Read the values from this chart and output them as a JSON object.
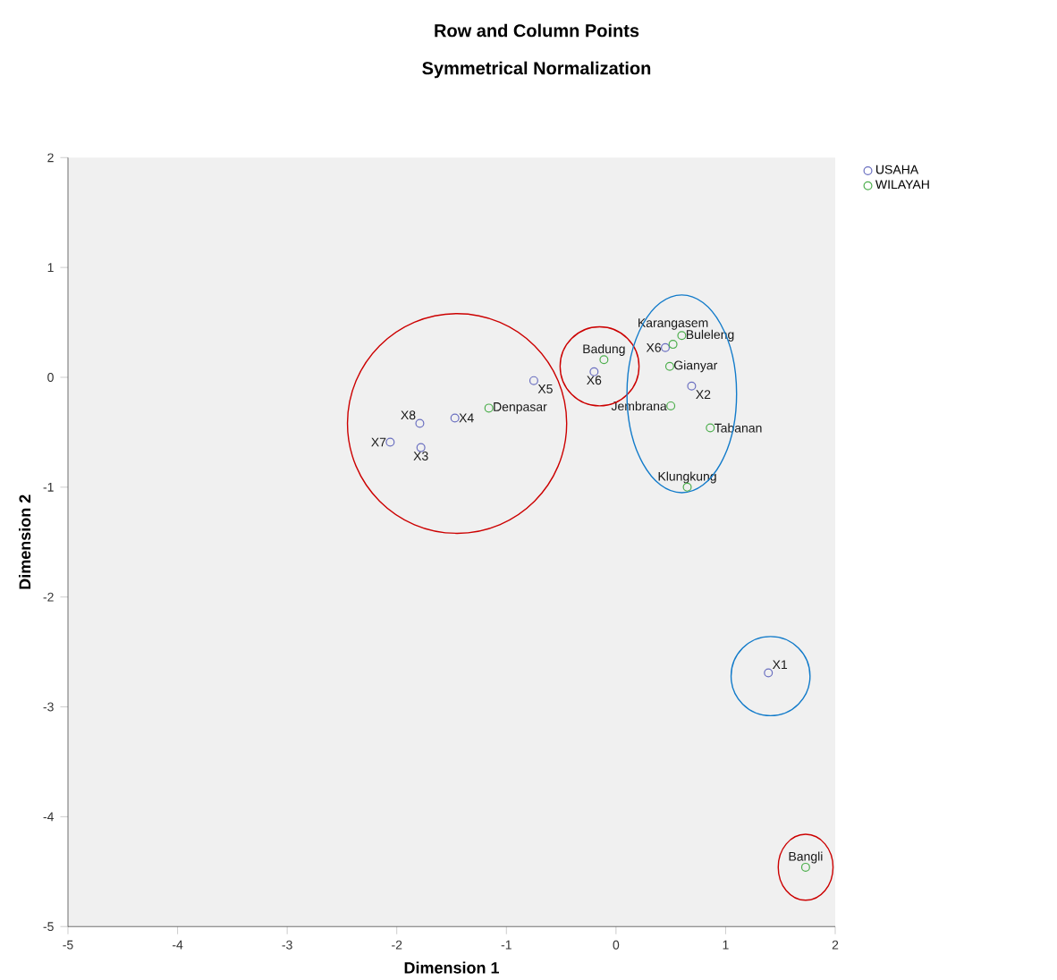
{
  "chart_data": {
    "type": "scatter",
    "title": "Row and Column Points",
    "subtitle": "Symmetrical Normalization",
    "xlabel": "Dimension 1",
    "ylabel": "Dimension 2",
    "series": [
      {
        "name": "USAHA",
        "color": "#6a6fc0",
        "x": [
          1.39,
          0.69,
          -1.78,
          -1.47,
          -0.75,
          -0.2,
          -2.06,
          -1.79,
          0.45
        ],
        "values": [
          -2.69,
          -0.08,
          -0.64,
          -0.37,
          -0.03,
          0.05,
          -0.59,
          -0.42,
          0.27
        ]
      },
      {
        "name": "WILAYAH",
        "color": "#4cae4c",
        "x": [
          -0.11,
          0.6,
          0.52,
          0.49,
          0.5,
          0.86,
          0.65,
          -1.16,
          1.73
        ],
        "values": [
          0.16,
          0.38,
          0.3,
          0.1,
          -0.26,
          -0.46,
          -1.0,
          -0.28,
          -4.46
        ]
      }
    ],
    "annotations": [
      {
        "text": "X1",
        "x": 1.39,
        "y": -2.69
      },
      {
        "text": "X2",
        "x": 0.69,
        "y": -0.08
      },
      {
        "text": "X3",
        "x": -1.78,
        "y": -0.64
      },
      {
        "text": "X4",
        "x": -1.47,
        "y": -0.37
      },
      {
        "text": "X5",
        "x": -0.75,
        "y": -0.03
      },
      {
        "text": "X6",
        "x": -0.2,
        "y": 0.05
      },
      {
        "text": "X7",
        "x": -2.06,
        "y": -0.59
      },
      {
        "text": "X8",
        "x": -1.79,
        "y": -0.42
      },
      {
        "text": "X6",
        "x": 0.45,
        "y": 0.27
      },
      {
        "text": "Badung",
        "x": -0.11,
        "y": 0.16
      },
      {
        "text": "Buleleng",
        "x": 0.6,
        "y": 0.38
      },
      {
        "text": "Karangasem",
        "x": 0.52,
        "y": 0.3
      },
      {
        "text": "Gianyar",
        "x": 0.49,
        "y": 0.1
      },
      {
        "text": "Jembrana",
        "x": 0.5,
        "y": -0.26
      },
      {
        "text": "Tabanan",
        "x": 0.86,
        "y": -0.46
      },
      {
        "text": "Klungkung",
        "x": 0.65,
        "y": -1.0
      },
      {
        "text": "Denpasar",
        "x": -1.16,
        "y": -0.28
      },
      {
        "text": "Bangli",
        "x": 1.73,
        "y": -4.46
      }
    ],
    "xlim": [
      -5,
      2
    ],
    "ylim": [
      -5,
      2
    ],
    "xticks": [
      -5,
      -4,
      -3,
      -2,
      -1,
      0,
      1,
      2
    ],
    "yticks": [
      -5,
      -4,
      -3,
      -2,
      -1,
      0,
      1,
      2
    ],
    "marker": "circle",
    "legend": "top right",
    "grid": false
  }
}
